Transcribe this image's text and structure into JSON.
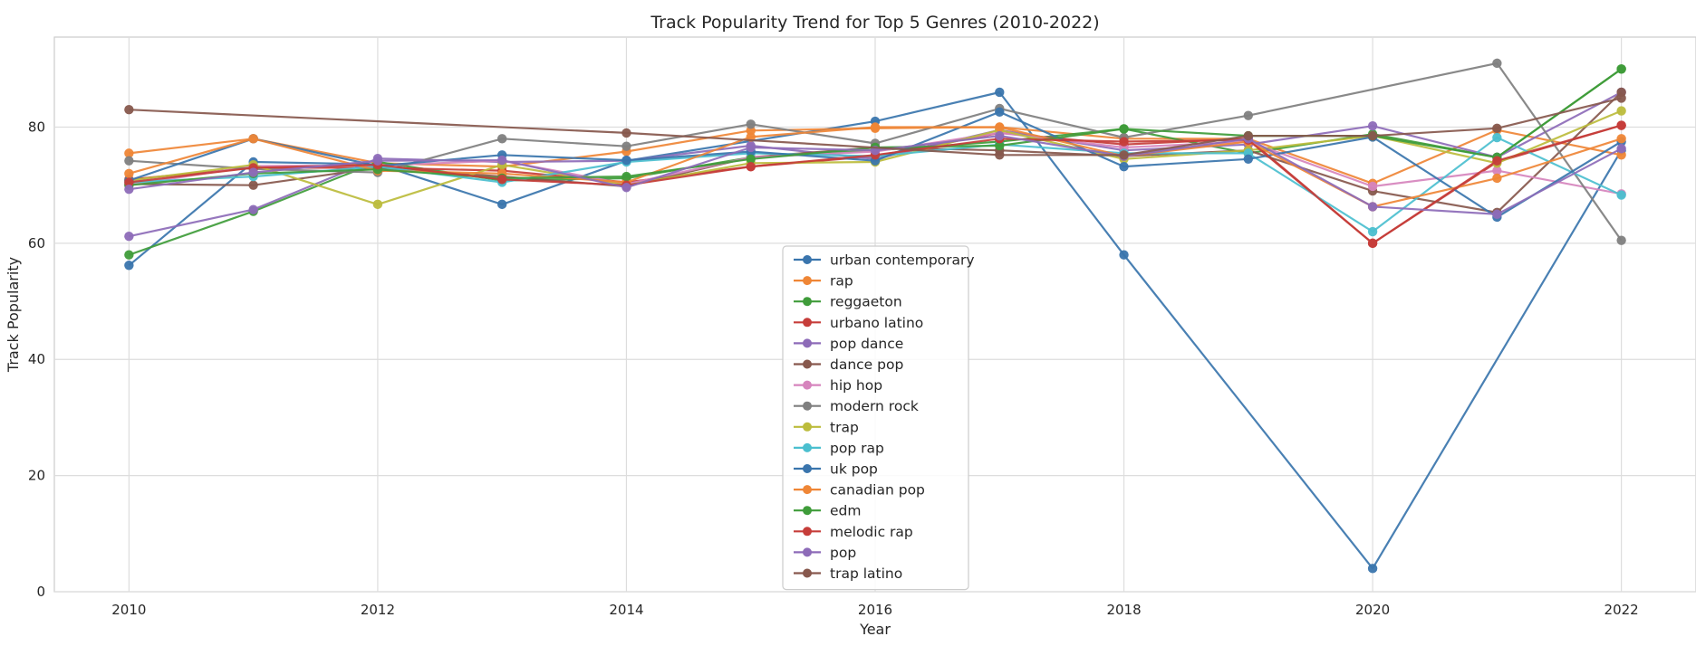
{
  "chart_data": {
    "type": "line",
    "title": "Track Popularity Trend for Top 5 Genres (2010-2022)",
    "xlabel": "Year",
    "ylabel": "Track Popularity",
    "xlim": [
      2009.4,
      2022.6
    ],
    "ylim": [
      0,
      95.5
    ],
    "xticks": [
      2010,
      2012,
      2014,
      2016,
      2018,
      2020,
      2022
    ],
    "yticks": [
      0,
      20,
      40,
      60,
      80
    ],
    "grid": true,
    "legend_position": "lower-center",
    "series": [
      {
        "name": "urban contemporary",
        "color": "#3a75ad",
        "points": [
          [
            2010,
            56.2
          ],
          [
            2011,
            74.0
          ],
          [
            2012,
            73.6
          ],
          [
            2013,
            66.7
          ],
          [
            2014,
            74.2
          ],
          [
            2016,
            81.0
          ],
          [
            2017,
            86.0
          ],
          [
            2018,
            58.0
          ],
          [
            2020,
            4.0
          ],
          [
            2022,
            76.0
          ]
        ]
      },
      {
        "name": "rap",
        "color": "#ef8636",
        "points": [
          [
            2010,
            75.5
          ],
          [
            2011,
            78.0
          ],
          [
            2012,
            73.8
          ],
          [
            2013,
            73.2
          ],
          [
            2014,
            75.8
          ],
          [
            2015,
            79.4
          ],
          [
            2016,
            79.8
          ],
          [
            2017,
            80.0
          ],
          [
            2018,
            78.0
          ],
          [
            2019,
            78.0
          ],
          [
            2020,
            70.3
          ],
          [
            2021,
            79.5
          ],
          [
            2022,
            75.2
          ]
        ]
      },
      {
        "name": "reggaeton",
        "color": "#3f9c3a",
        "points": [
          [
            2010,
            58.0
          ],
          [
            2011,
            65.5
          ],
          [
            2012,
            74.0
          ],
          [
            2013,
            70.8
          ],
          [
            2014,
            71.2
          ],
          [
            2015,
            74.8
          ],
          [
            2016,
            76.0
          ],
          [
            2017,
            77.5
          ],
          [
            2018,
            79.7
          ],
          [
            2019,
            75.5
          ],
          [
            2020,
            78.8
          ],
          [
            2021,
            74.8
          ],
          [
            2022,
            90.0
          ]
        ]
      },
      {
        "name": "urbano latino",
        "color": "#c63d3a",
        "points": [
          [
            2010,
            71.0
          ],
          [
            2011,
            73.0
          ],
          [
            2012,
            73.0
          ],
          [
            2013,
            72.5
          ],
          [
            2014,
            70.5
          ],
          [
            2015,
            73.2
          ],
          [
            2016,
            75.0
          ],
          [
            2017,
            79.0
          ],
          [
            2018,
            77.0
          ],
          [
            2019,
            78.0
          ],
          [
            2020,
            60.0
          ],
          [
            2021,
            74.0
          ],
          [
            2022,
            80.3
          ]
        ]
      },
      {
        "name": "pop dance",
        "color": "#8d6bb8",
        "points": [
          [
            2010,
            61.2
          ],
          [
            2011,
            65.8
          ],
          [
            2012,
            74.6
          ],
          [
            2013,
            74.0
          ],
          [
            2014,
            74.2
          ],
          [
            2015,
            76.8
          ],
          [
            2016,
            74.5
          ],
          [
            2017,
            79.5
          ],
          [
            2018,
            76.0
          ],
          [
            2019,
            77.0
          ],
          [
            2020,
            80.2
          ],
          [
            2021,
            74.8
          ],
          [
            2022,
            86.0
          ]
        ]
      },
      {
        "name": "dance pop",
        "color": "#87584d",
        "points": [
          [
            2010,
            70.2
          ],
          [
            2011,
            70.0
          ],
          [
            2012,
            73.0
          ],
          [
            2013,
            71.5
          ],
          [
            2014,
            69.8
          ],
          [
            2015,
            74.8
          ],
          [
            2016,
            76.5
          ],
          [
            2017,
            76.0
          ],
          [
            2018,
            75.0
          ],
          [
            2019,
            76.0
          ],
          [
            2020,
            69.0
          ],
          [
            2021,
            65.3
          ],
          [
            2022,
            86.0
          ]
        ]
      },
      {
        "name": "hip hop",
        "color": "#d684bd",
        "points": [
          [
            2010,
            70.0
          ],
          [
            2011,
            73.3
          ],
          [
            2012,
            73.4
          ],
          [
            2013,
            74.2
          ],
          [
            2014,
            70.2
          ],
          [
            2015,
            74.8
          ],
          [
            2016,
            75.8
          ],
          [
            2017,
            79.0
          ],
          [
            2018,
            76.5
          ],
          [
            2019,
            77.5
          ],
          [
            2020,
            69.8
          ],
          [
            2021,
            72.5
          ],
          [
            2022,
            68.5
          ]
        ]
      },
      {
        "name": "modern rock",
        "color": "#7f7f7f",
        "points": [
          [
            2010,
            74.2
          ],
          [
            2011,
            72.8
          ],
          [
            2012,
            72.2
          ],
          [
            2013,
            78.0
          ],
          [
            2014,
            76.7
          ],
          [
            2015,
            80.5
          ],
          [
            2016,
            77.2
          ],
          [
            2017,
            83.2
          ],
          [
            2018,
            78.2
          ],
          [
            2019,
            82.0
          ],
          [
            2021,
            91.0
          ],
          [
            2022,
            60.5
          ]
        ]
      },
      {
        "name": "trap",
        "color": "#bcbc3c",
        "points": [
          [
            2010,
            70.8
          ],
          [
            2011,
            73.5
          ],
          [
            2012,
            66.7
          ],
          [
            2013,
            73.5
          ],
          [
            2014,
            70.0
          ],
          [
            2015,
            73.8
          ],
          [
            2016,
            74.0
          ],
          [
            2017,
            79.5
          ],
          [
            2018,
            74.5
          ],
          [
            2019,
            76.0
          ],
          [
            2020,
            78.5
          ],
          [
            2021,
            73.8
          ],
          [
            2022,
            82.8
          ]
        ]
      },
      {
        "name": "pop rap",
        "color": "#4bbfcf",
        "points": [
          [
            2010,
            70.5
          ],
          [
            2011,
            71.5
          ],
          [
            2012,
            73.2
          ],
          [
            2013,
            70.5
          ],
          [
            2014,
            74.0
          ],
          [
            2015,
            75.5
          ],
          [
            2016,
            75.0
          ],
          [
            2017,
            77.0
          ],
          [
            2018,
            75.5
          ],
          [
            2019,
            75.5
          ],
          [
            2020,
            62.0
          ],
          [
            2021,
            78.2
          ],
          [
            2022,
            68.3
          ]
        ]
      },
      {
        "name": "uk pop",
        "color": "#3a75ad",
        "points": [
          [
            2010,
            70.8
          ],
          [
            2011,
            78.0
          ],
          [
            2012,
            73.3
          ],
          [
            2013,
            75.2
          ],
          [
            2014,
            74.3
          ],
          [
            2015,
            75.8
          ],
          [
            2016,
            74.2
          ],
          [
            2017,
            82.6
          ],
          [
            2018,
            73.2
          ],
          [
            2019,
            74.5
          ],
          [
            2020,
            78.3
          ],
          [
            2021,
            64.5
          ],
          [
            2022,
            77.5
          ]
        ]
      },
      {
        "name": "canadian pop",
        "color": "#ef8636",
        "points": [
          [
            2010,
            72.0
          ],
          [
            2011,
            78.0
          ],
          [
            2012,
            72.5
          ],
          [
            2013,
            72.0
          ],
          [
            2014,
            70.5
          ],
          [
            2015,
            78.3
          ],
          [
            2016,
            80.0
          ],
          [
            2017,
            80.0
          ],
          [
            2018,
            75.0
          ],
          [
            2019,
            77.5
          ],
          [
            2020,
            66.3
          ],
          [
            2021,
            71.2
          ],
          [
            2022,
            78.0
          ]
        ]
      },
      {
        "name": "edm",
        "color": "#3f9c3a",
        "points": [
          [
            2010,
            70.0
          ],
          [
            2011,
            72.0
          ],
          [
            2012,
            72.7
          ],
          [
            2013,
            71.2
          ],
          [
            2014,
            71.5
          ],
          [
            2015,
            74.5
          ],
          [
            2016,
            76.5
          ],
          [
            2017,
            76.8
          ],
          [
            2018,
            79.7
          ],
          [
            2019,
            78.5
          ],
          [
            2020,
            78.5
          ],
          [
            2021,
            74.8
          ],
          [
            2022,
            90.0
          ]
        ]
      },
      {
        "name": "melodic rap",
        "color": "#c63d3a",
        "points": [
          [
            2010,
            70.5
          ],
          [
            2011,
            73.0
          ],
          [
            2012,
            73.5
          ],
          [
            2013,
            71.0
          ],
          [
            2014,
            70.0
          ],
          [
            2015,
            73.2
          ],
          [
            2016,
            75.2
          ],
          [
            2017,
            78.0
          ],
          [
            2018,
            77.5
          ],
          [
            2019,
            77.8
          ],
          [
            2020,
            60.0
          ],
          [
            2021,
            74.2
          ],
          [
            2022,
            80.3
          ]
        ]
      },
      {
        "name": "pop",
        "color": "#8d6bb8",
        "points": [
          [
            2010,
            69.3
          ],
          [
            2011,
            72.2
          ],
          [
            2012,
            74.2
          ],
          [
            2013,
            74.3
          ],
          [
            2014,
            69.6
          ],
          [
            2015,
            76.5
          ],
          [
            2016,
            76.0
          ],
          [
            2017,
            78.5
          ],
          [
            2018,
            75.0
          ],
          [
            2019,
            78.0
          ],
          [
            2020,
            66.3
          ],
          [
            2021,
            65.0
          ],
          [
            2022,
            76.3
          ]
        ]
      },
      {
        "name": "trap latino",
        "color": "#87584d",
        "points": [
          [
            2010,
            83.0
          ],
          [
            2014,
            79.0
          ],
          [
            2017,
            75.2
          ],
          [
            2018,
            75.2
          ],
          [
            2019,
            78.5
          ],
          [
            2020,
            78.5
          ],
          [
            2021,
            79.8
          ],
          [
            2022,
            85.0
          ]
        ]
      }
    ]
  }
}
